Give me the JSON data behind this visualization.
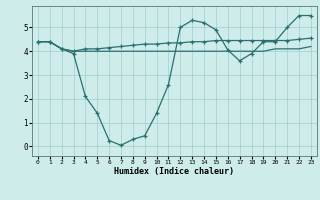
{
  "xlabel": "Humidex (Indice chaleur)",
  "bg_color": "#ceecea",
  "line_color": "#2a7070",
  "grid_color": "#9ecece",
  "x_ticks": [
    0,
    1,
    2,
    3,
    4,
    5,
    6,
    7,
    8,
    9,
    10,
    11,
    12,
    13,
    14,
    15,
    16,
    17,
    18,
    19,
    20,
    21,
    22,
    23
  ],
  "y_ticks": [
    0,
    1,
    2,
    3,
    4,
    5
  ],
  "ylim": [
    -0.4,
    5.9
  ],
  "xlim": [
    -0.5,
    23.5
  ],
  "line1_x": [
    0,
    1,
    2,
    3,
    4,
    5,
    6,
    7,
    8,
    9,
    10,
    11,
    12,
    13,
    14,
    15,
    16,
    17,
    18,
    19,
    20,
    21,
    22,
    23
  ],
  "line1_y": [
    4.4,
    4.4,
    4.1,
    3.9,
    2.1,
    1.4,
    0.25,
    0.05,
    0.3,
    0.45,
    1.4,
    2.6,
    5.0,
    5.3,
    5.2,
    4.9,
    4.05,
    3.6,
    3.9,
    4.4,
    4.4,
    5.0,
    5.5,
    5.5
  ],
  "line2_x": [
    0,
    1,
    2,
    3,
    4,
    5,
    6,
    7,
    8,
    9,
    10,
    11,
    12,
    13,
    14,
    15,
    16,
    17,
    18,
    19,
    20,
    21,
    22,
    23
  ],
  "line2_y": [
    4.4,
    4.4,
    4.1,
    4.0,
    4.1,
    4.1,
    4.15,
    4.2,
    4.25,
    4.3,
    4.3,
    4.35,
    4.35,
    4.4,
    4.4,
    4.45,
    4.45,
    4.45,
    4.45,
    4.45,
    4.45,
    4.45,
    4.5,
    4.55
  ],
  "line3_x": [
    0,
    1,
    2,
    3,
    4,
    5,
    6,
    7,
    8,
    9,
    10,
    11,
    12,
    13,
    14,
    15,
    16,
    17,
    18,
    19,
    20,
    21,
    22,
    23
  ],
  "line3_y": [
    4.4,
    4.4,
    4.1,
    4.0,
    4.0,
    4.0,
    4.0,
    4.0,
    4.0,
    4.0,
    4.0,
    4.0,
    4.0,
    4.0,
    4.0,
    4.0,
    4.0,
    4.0,
    4.0,
    4.0,
    4.1,
    4.1,
    4.1,
    4.2
  ]
}
